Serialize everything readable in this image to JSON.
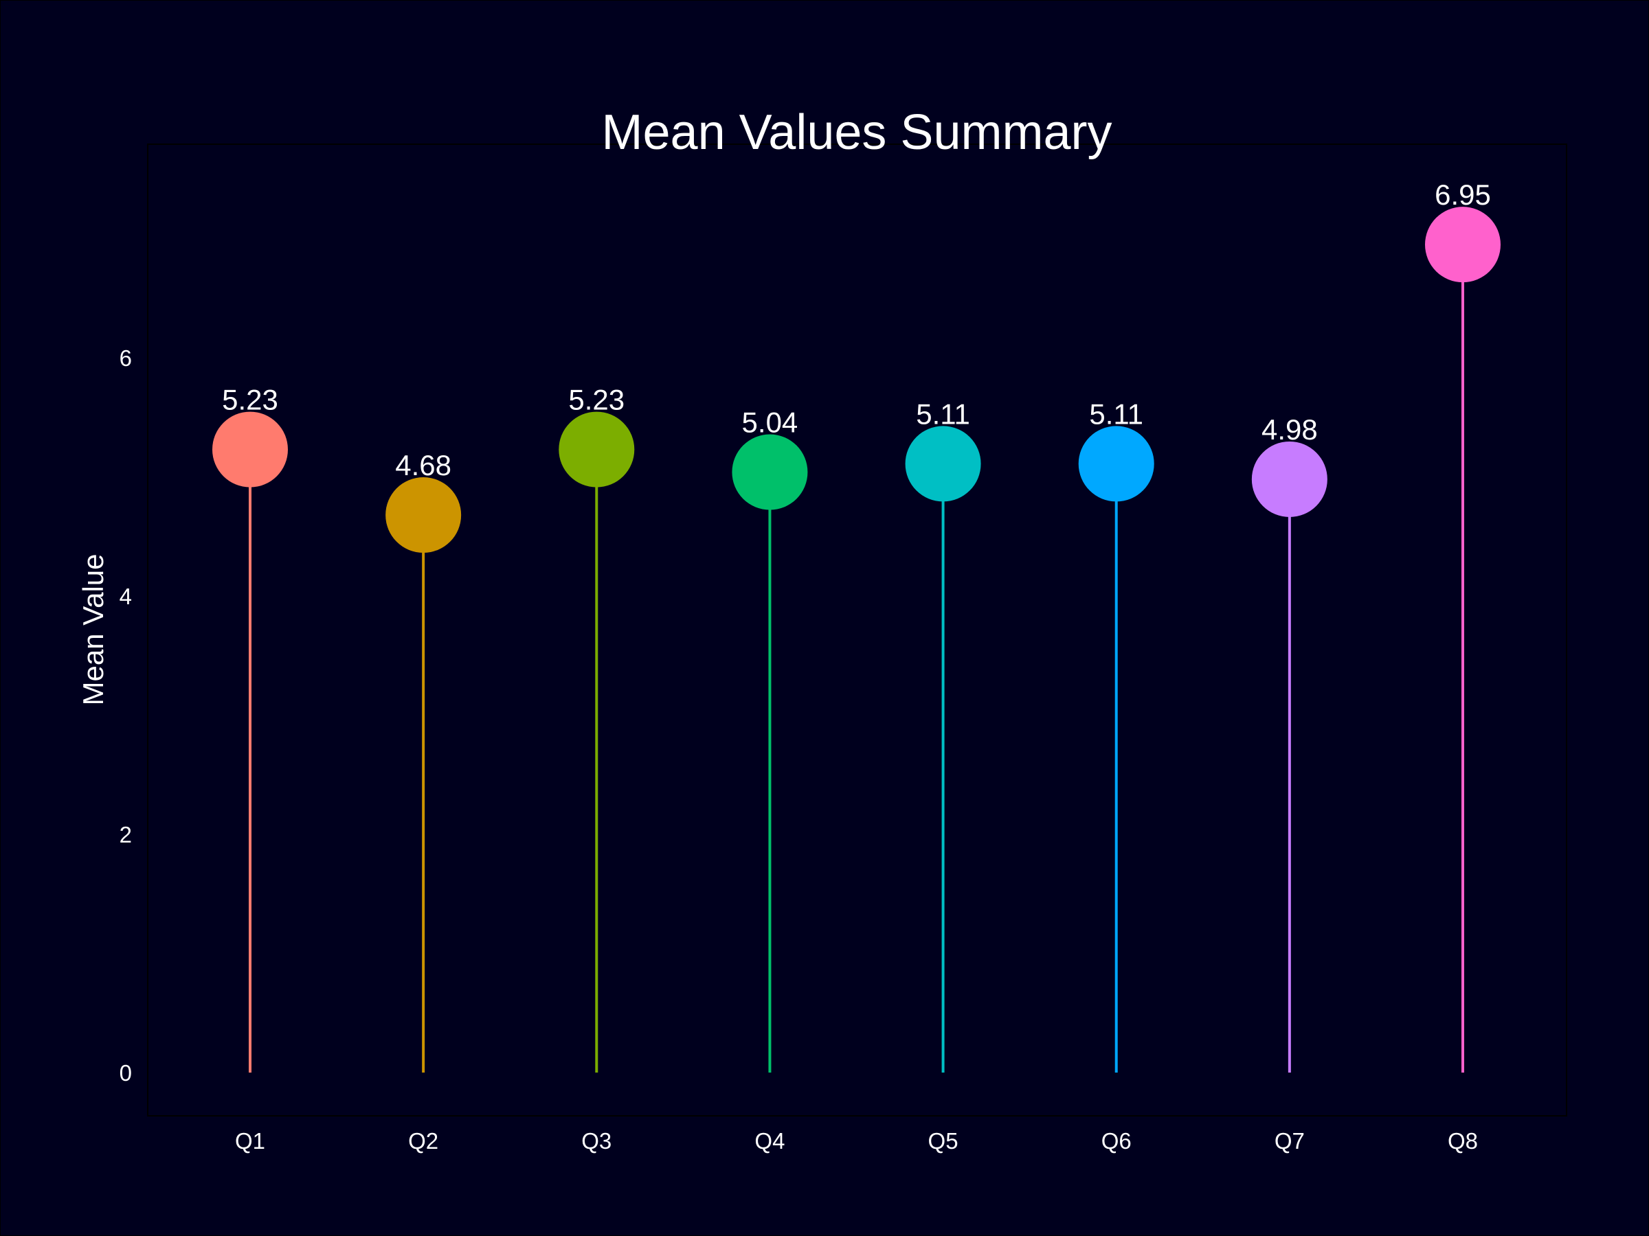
{
  "chart_data": {
    "type": "lollipop",
    "title": "Mean Values Summary",
    "xlabel": "",
    "ylabel": "Mean Value",
    "categories": [
      "Q1",
      "Q2",
      "Q3",
      "Q4",
      "Q5",
      "Q6",
      "Q7",
      "Q8"
    ],
    "values": [
      5.23,
      4.68,
      5.23,
      5.04,
      5.11,
      5.11,
      4.98,
      6.95
    ],
    "value_labels": [
      "5.23",
      "4.68",
      "5.23",
      "5.04",
      "5.11",
      "5.11",
      "4.98",
      "6.95"
    ],
    "colors": [
      "#ff7b6e",
      "#cc9400",
      "#7cae00",
      "#00c06a",
      "#00bfc4",
      "#00a8ff",
      "#c77cff",
      "#ff61cc"
    ],
    "yticks": [
      0,
      2,
      4,
      6
    ],
    "ytick_labels": [
      "0",
      "2",
      "4",
      "6"
    ],
    "ylim": [
      -0.35,
      7.8
    ],
    "grid": false,
    "legend": "none",
    "background": "#00001e",
    "panel_border": "#000000"
  }
}
